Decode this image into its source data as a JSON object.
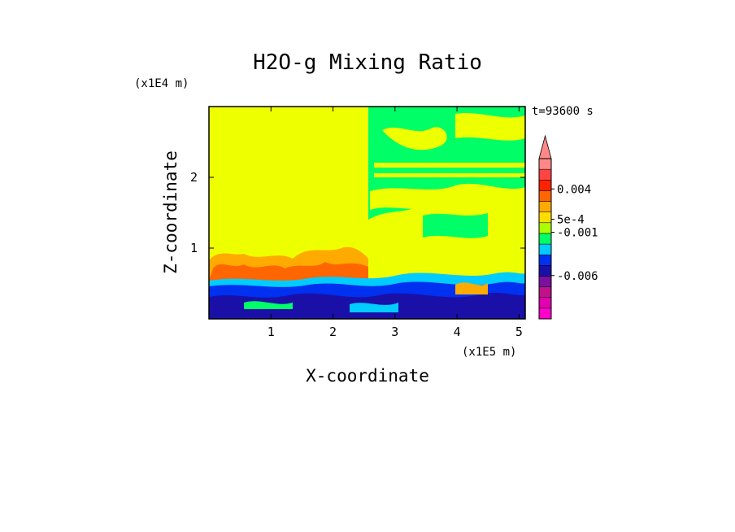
{
  "chart_data": {
    "type": "heatmap",
    "title": "H2O-g Mixing Ratio",
    "xlabel": "X-coordinate",
    "ylabel": "Z-coordinate",
    "x_unit": "(x1E5 m)",
    "y_unit": "(x1E4 m)",
    "time_label": "t=93600 s",
    "xlim": [
      0,
      5.1
    ],
    "ylim": [
      0,
      3
    ],
    "x_ticks": [
      1,
      2,
      3,
      4,
      5
    ],
    "y_ticks": [
      1,
      2
    ],
    "x_tick_labels": [
      "1",
      "2",
      "3",
      "4",
      "5"
    ],
    "y_tick_labels": [
      "1",
      "2"
    ],
    "colorbar": {
      "colors": [
        "#ff00cc",
        "#e000b0",
        "#c0108a",
        "#7a10a0",
        "#1a10a8",
        "#0030f0",
        "#00ccff",
        "#00ff66",
        "#aaff00",
        "#ffdd00",
        "#ffaa00",
        "#ff6600",
        "#ff2200",
        "#ff4444",
        "#ff8888"
      ],
      "tick_values": [
        -0.006,
        -0.001,
        0.0005,
        0.004
      ],
      "tick_labels": [
        "-0.006",
        "-0.001",
        "5e-4",
        "0.004"
      ],
      "extend_max": true
    }
  }
}
